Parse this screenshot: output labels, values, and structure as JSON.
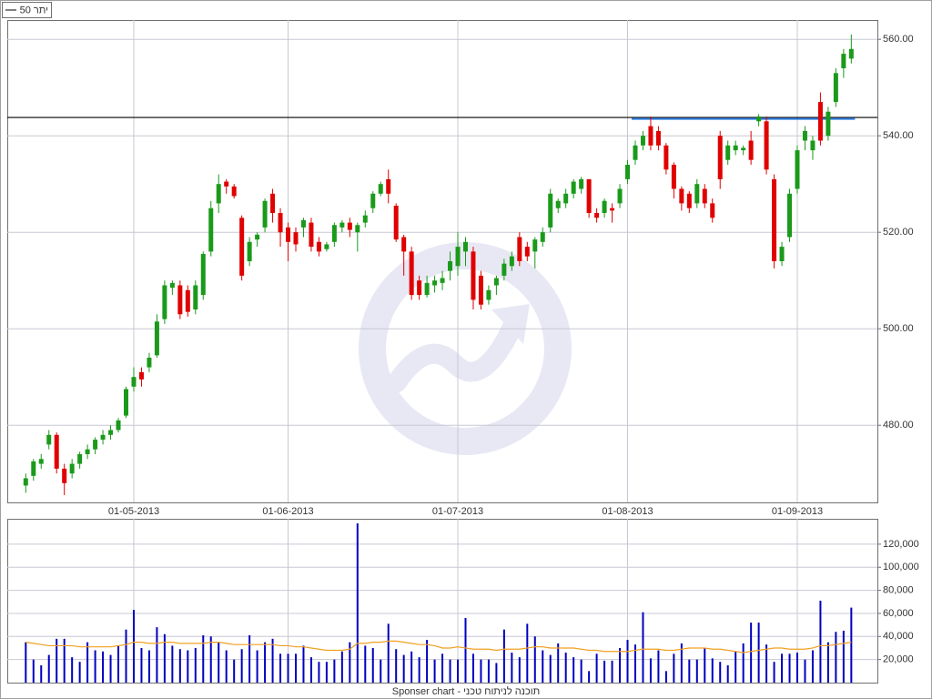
{
  "chart_data": {
    "type": "candlestick",
    "legend_label": "יתר 50",
    "footer": "Sponser chart - תוכנה לניתוח טכני",
    "categories": [
      null,
      null,
      null,
      null,
      null,
      null,
      null,
      null,
      null,
      null,
      null,
      null,
      null,
      null,
      "01-05-2013",
      null,
      null,
      null,
      null,
      null,
      null,
      null,
      null,
      null,
      null,
      null,
      null,
      null,
      null,
      null,
      null,
      null,
      null,
      null,
      "01-06-2013",
      null,
      null,
      null,
      null,
      null,
      null,
      null,
      null,
      null,
      null,
      null,
      null,
      null,
      null,
      null,
      null,
      null,
      null,
      null,
      null,
      null,
      "01-07-2013",
      null,
      null,
      null,
      null,
      null,
      null,
      null,
      null,
      null,
      null,
      null,
      null,
      null,
      null,
      null,
      null,
      null,
      null,
      null,
      null,
      null,
      "01-08-2013",
      null,
      null,
      null,
      null,
      null,
      null,
      null,
      null,
      null,
      null,
      null,
      null,
      null,
      null,
      null,
      null,
      null,
      null,
      null,
      null,
      null,
      "01-09-2013",
      null,
      null,
      null,
      null,
      null,
      null,
      null
    ],
    "open": [
      467.5,
      469.5,
      472,
      476,
      478,
      471,
      470,
      472,
      474,
      475,
      477,
      478,
      479,
      482,
      488,
      491,
      492,
      494.5,
      502,
      508.5,
      509,
      508,
      504,
      507,
      516,
      526,
      530.5,
      529.5,
      523,
      514,
      518.5,
      521,
      528,
      524,
      521,
      520,
      521,
      522,
      518,
      516.5,
      518,
      521,
      522,
      520,
      522,
      525,
      528,
      531,
      525.5,
      519,
      516,
      510,
      507,
      509,
      509.5,
      512,
      513,
      516,
      516,
      511,
      506,
      509,
      511,
      513,
      519,
      517,
      516,
      518,
      521,
      525,
      526,
      528,
      529,
      531,
      524,
      524,
      525,
      526,
      531,
      535,
      538,
      542,
      541,
      538,
      534,
      529,
      528,
      526,
      529,
      526,
      540,
      535,
      537,
      537,
      539,
      543,
      543,
      531,
      514,
      519,
      529,
      539,
      537,
      547,
      540,
      547,
      554,
      556
    ],
    "high": [
      470,
      473,
      474,
      479,
      478.5,
      472,
      473,
      474.5,
      476,
      477.5,
      479,
      480,
      481.5,
      488,
      492,
      492,
      495,
      503,
      510,
      510,
      510,
      509,
      510,
      516,
      526.5,
      532,
      531,
      530,
      523.5,
      519,
      520,
      527,
      529,
      525,
      522,
      521,
      523,
      523,
      519,
      518,
      522,
      522.5,
      523,
      522,
      524.5,
      528.5,
      530.5,
      533,
      526,
      519.5,
      517,
      511,
      511,
      511,
      512,
      516,
      520,
      519,
      517,
      512,
      509,
      511,
      514.5,
      516,
      520,
      518,
      519,
      521,
      529,
      527,
      529,
      531,
      531.5,
      531,
      525,
      527,
      526,
      530,
      535,
      539,
      541,
      544,
      542,
      538.5,
      534.5,
      529.5,
      528.5,
      531,
      530,
      527,
      541,
      539,
      539,
      538,
      541,
      544.5,
      544,
      532,
      518,
      529,
      538,
      542,
      540,
      549,
      546,
      554,
      558,
      561
    ],
    "low": [
      466,
      468.5,
      471,
      475,
      470,
      465.5,
      469,
      471,
      473,
      474,
      476,
      477,
      478.5,
      481.5,
      487,
      488,
      491,
      494,
      501,
      507,
      502,
      502.5,
      503,
      506,
      515,
      524,
      528,
      527,
      510,
      513,
      517,
      520,
      522,
      517,
      514,
      516,
      519,
      516,
      515,
      516,
      517,
      520,
      519,
      516,
      521,
      524,
      527.5,
      526,
      518,
      511,
      506,
      506,
      506.5,
      507.5,
      508,
      510,
      511,
      513,
      504,
      504,
      505,
      507,
      510,
      512,
      513,
      514,
      512.5,
      517,
      520,
      524,
      525,
      527,
      528,
      523,
      522,
      523,
      522,
      525,
      530,
      534,
      537,
      537,
      537,
      532,
      527,
      524.5,
      524,
      525,
      525,
      522,
      529,
      534,
      536,
      536,
      534,
      542,
      532,
      512.5,
      513,
      518,
      528,
      537,
      535,
      538,
      539,
      546,
      552,
      555
    ],
    "close": [
      469,
      472.5,
      473,
      478,
      471,
      468,
      472,
      474,
      475,
      477,
      478,
      479,
      481,
      487.5,
      490,
      489.5,
      494,
      501.5,
      509,
      509.5,
      503,
      503.5,
      509,
      515.5,
      525,
      530,
      529.5,
      527.5,
      511,
      518,
      519.5,
      526.5,
      524,
      520,
      518,
      517.5,
      522.5,
      517,
      516,
      517.5,
      521.5,
      522,
      520.5,
      521.5,
      523.5,
      528,
      530,
      528,
      518.5,
      516,
      507,
      507,
      509.5,
      510,
      510.5,
      514,
      517,
      518,
      506,
      505,
      508,
      510.5,
      513.5,
      515,
      514,
      515,
      518.5,
      520,
      528,
      526.5,
      528,
      530.5,
      531,
      524,
      523,
      526.5,
      524.5,
      529,
      534,
      538,
      540,
      538,
      538,
      533,
      529,
      526,
      525,
      530,
      526,
      523,
      531,
      538,
      538,
      537.5,
      535,
      544,
      533,
      514,
      517,
      528,
      537,
      541,
      539,
      539,
      545,
      553,
      557,
      558
    ],
    "up_color": "#1a9a1a",
    "down_color": "#e00000",
    "ylim": [
      464,
      564
    ],
    "yticks": [
      {
        "value": 480,
        "label": "480.00"
      },
      {
        "value": 500,
        "label": "500.00"
      },
      {
        "value": 520,
        "label": "520.00"
      },
      {
        "value": 540,
        "label": "540.00"
      },
      {
        "value": 560,
        "label": "560.00"
      }
    ],
    "grid": true,
    "lines": [
      {
        "value": 543.8,
        "color": "#000000"
      },
      {
        "value": 543.5,
        "color": "#2a7de1",
        "from": 79,
        "to": 107
      }
    ],
    "volume": {
      "type": "bar",
      "color": "#0000c0",
      "values": [
        35000,
        20000,
        15000,
        24000,
        38000,
        38000,
        22000,
        18000,
        35000,
        28000,
        27000,
        24000,
        32000,
        46000,
        63000,
        30000,
        28000,
        48000,
        42000,
        32000,
        29000,
        28000,
        30000,
        41000,
        40000,
        35000,
        28000,
        20000,
        29000,
        41000,
        28000,
        35000,
        38000,
        25000,
        25000,
        25000,
        32000,
        22000,
        18000,
        18000,
        20000,
        27000,
        35000,
        138000,
        32000,
        30000,
        20000,
        51000,
        29000,
        24000,
        27000,
        22000,
        37000,
        20000,
        25000,
        20000,
        20000,
        56000,
        25000,
        20000,
        20000,
        17000,
        46000,
        26000,
        22000,
        51000,
        40000,
        28000,
        24000,
        34000,
        26000,
        22000,
        20000,
        10000,
        25000,
        19000,
        19000,
        30000,
        37000,
        33000,
        61000,
        21000,
        28000,
        10000,
        25000,
        34000,
        20000,
        20000,
        30000,
        21000,
        18000,
        15000,
        27000,
        34000,
        52000,
        52000,
        33000,
        18000,
        25000,
        25000,
        26000,
        20000,
        28000,
        71000,
        35000,
        44000,
        45000,
        65000
      ],
      "average": {
        "color": "#f0a020",
        "values": [
          35000,
          34000,
          33000,
          32000,
          32000,
          32000,
          32000,
          31000,
          31000,
          31000,
          31000,
          31000,
          32000,
          33000,
          35000,
          35000,
          34000,
          34000,
          35000,
          35000,
          34000,
          34000,
          34000,
          34000,
          35000,
          35000,
          34000,
          33000,
          33000,
          33000,
          33000,
          33000,
          33000,
          32000,
          32000,
          31000,
          31000,
          30000,
          29000,
          28000,
          28000,
          28000,
          29000,
          34000,
          34000,
          35000,
          35000,
          36000,
          36000,
          35000,
          34000,
          33000,
          33000,
          32000,
          30000,
          30000,
          31000,
          30000,
          29000,
          29000,
          29000,
          28000,
          29000,
          29000,
          29000,
          30000,
          31000,
          31000,
          30000,
          30000,
          30000,
          30000,
          29000,
          28000,
          28000,
          27000,
          27000,
          27000,
          27000,
          28000,
          29000,
          29000,
          29000,
          28000,
          28000,
          29000,
          30000,
          30000,
          30000,
          29000,
          29000,
          28000,
          27000,
          26000,
          27000,
          28000,
          29000,
          30000,
          30000,
          29000,
          29000,
          29000,
          30000,
          32000,
          32000,
          33000,
          34000,
          35000
        ]
      },
      "ylim": [
        0,
        142000
      ],
      "yticks": [
        {
          "value": 20000,
          "label": "20,000"
        },
        {
          "value": 40000,
          "label": "40,000"
        },
        {
          "value": 60000,
          "label": "60,000"
        },
        {
          "value": 80000,
          "label": "80,000"
        },
        {
          "value": 100000,
          "label": "100,000"
        },
        {
          "value": 120000,
          "label": "120,000"
        }
      ],
      "grid": true
    }
  }
}
